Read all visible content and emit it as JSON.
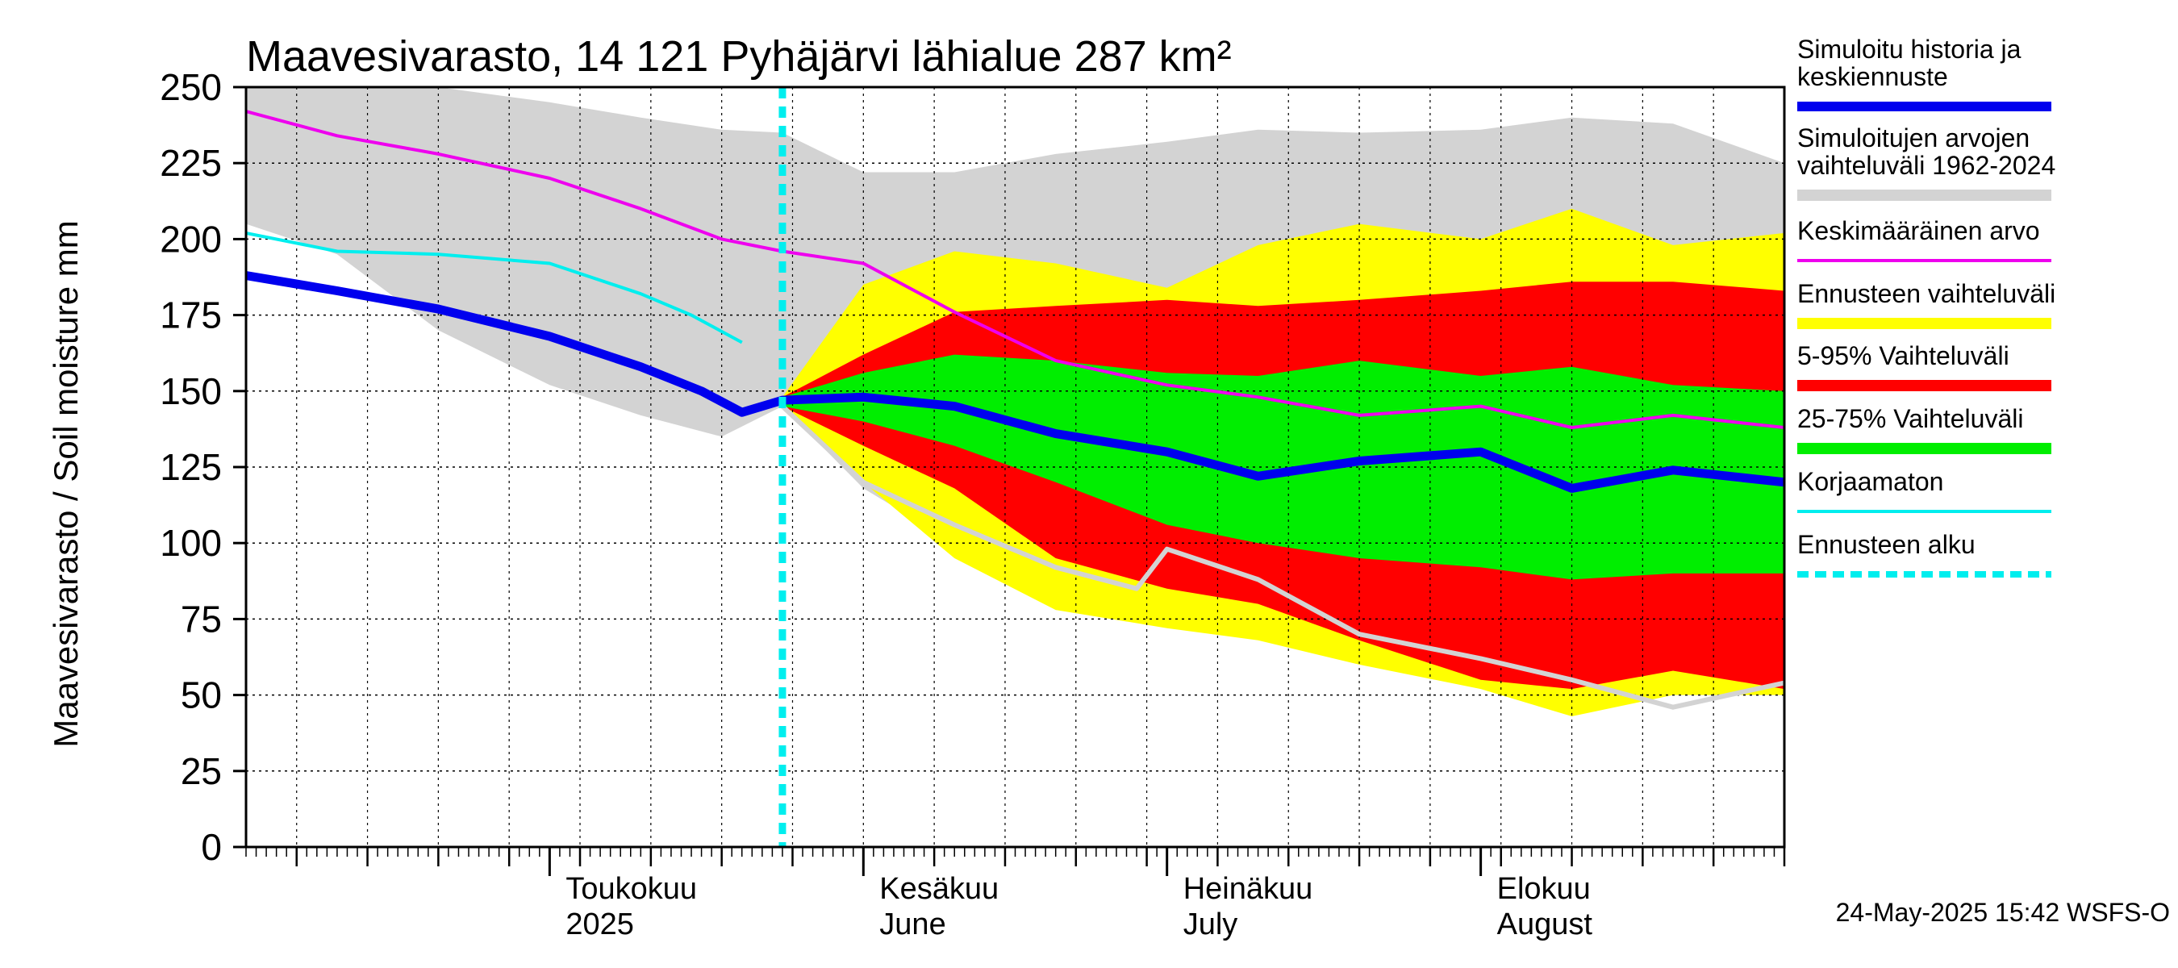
{
  "chart_data": {
    "type": "area",
    "title": "Maavesivarasto, 14 121 Pyhäjärvi lähialue 287 km²",
    "ylabel": "Maavesivarasto / Soil moisture   mm",
    "ylim": [
      0,
      250
    ],
    "yticks": [
      0,
      25,
      50,
      75,
      100,
      125,
      150,
      175,
      200,
      225,
      250
    ],
    "xlim": [
      "2025-04-01",
      "2025-08-31"
    ],
    "grid": true,
    "month_labels": [
      {
        "date": "2025-05-01",
        "line1": "Toukokuu",
        "line2": "2025"
      },
      {
        "date": "2025-06-01",
        "line1": "Kesäkuu",
        "line2": "June"
      },
      {
        "date": "2025-07-01",
        "line1": "Heinäkuu",
        "line2": "July"
      },
      {
        "date": "2025-08-01",
        "line1": "Elokuu",
        "line2": "August"
      }
    ],
    "forecast_start": "2025-05-24",
    "timestamp": "24-May-2025 15:42 WSFS-O",
    "legend": [
      {
        "label": "Simuloitu historia ja keskiennuste",
        "color": "#0000ee",
        "style": "thick"
      },
      {
        "label": "Simuloitujen arvojen vaihteluväli 1962-2024",
        "color": "#d3d3d3",
        "style": "band"
      },
      {
        "label": "Keskimääräinen arvo",
        "color": "#ee00ee",
        "style": "line"
      },
      {
        "label": "Ennusteen vaihteluväli",
        "color": "#ffff00",
        "style": "band"
      },
      {
        "label": "5-95% Vaihteluväli",
        "color": "#ff0000",
        "style": "band"
      },
      {
        "label": "25-75% Vaihteluväli",
        "color": "#00ee00",
        "style": "band"
      },
      {
        "label": "Korjaamaton",
        "color": "#00eeee",
        "style": "line"
      },
      {
        "label": "Ennusteen alku",
        "color": "#00eeee",
        "style": "dashed"
      }
    ],
    "series": [
      {
        "name": "Simuloitujen arvojen vaihteluväli 1962-2024",
        "kind": "band",
        "color": "#d3d3d3",
        "x": [
          "2025-04-01",
          "2025-04-10",
          "2025-04-20",
          "2025-05-01",
          "2025-05-10",
          "2025-05-18",
          "2025-05-24",
          "2025-06-01",
          "2025-06-10",
          "2025-06-20",
          "2025-07-01",
          "2025-07-10",
          "2025-07-20",
          "2025-08-01",
          "2025-08-10",
          "2025-08-20",
          "2025-08-31"
        ],
        "low": [
          205,
          195,
          170,
          152,
          142,
          135,
          145,
          118,
          100,
          78,
          78,
          80,
          95,
          80,
          90,
          100,
          102
        ],
        "high": [
          250,
          250,
          250,
          245,
          240,
          236,
          235,
          222,
          222,
          228,
          232,
          236,
          235,
          236,
          240,
          238,
          225
        ]
      },
      {
        "name": "Ennusteen vaihteluväli",
        "kind": "band",
        "color": "#ffff00",
        "x": [
          "2025-05-24",
          "2025-06-01",
          "2025-06-10",
          "2025-06-20",
          "2025-07-01",
          "2025-07-10",
          "2025-07-20",
          "2025-08-01",
          "2025-08-10",
          "2025-08-20",
          "2025-08-31"
        ],
        "low": [
          145,
          120,
          95,
          78,
          72,
          68,
          60,
          52,
          43,
          50,
          50
        ],
        "high": [
          148,
          185,
          196,
          192,
          184,
          198,
          205,
          200,
          210,
          198,
          202
        ]
      },
      {
        "name": "5-95% Vaihteluväli",
        "kind": "band",
        "color": "#ff0000",
        "x": [
          "2025-05-24",
          "2025-06-01",
          "2025-06-10",
          "2025-06-20",
          "2025-07-01",
          "2025-07-10",
          "2025-07-20",
          "2025-08-01",
          "2025-08-10",
          "2025-08-20",
          "2025-08-31"
        ],
        "low": [
          145,
          132,
          118,
          95,
          85,
          80,
          68,
          55,
          52,
          58,
          52
        ],
        "high": [
          148,
          162,
          176,
          178,
          180,
          178,
          180,
          183,
          186,
          186,
          183
        ]
      },
      {
        "name": "25-75% Vaihteluväli",
        "kind": "band",
        "color": "#00ee00",
        "x": [
          "2025-05-24",
          "2025-06-01",
          "2025-06-10",
          "2025-06-20",
          "2025-07-01",
          "2025-07-10",
          "2025-07-20",
          "2025-08-01",
          "2025-08-10",
          "2025-08-20",
          "2025-08-31"
        ],
        "low": [
          145,
          140,
          132,
          120,
          106,
          100,
          95,
          92,
          88,
          90,
          90
        ],
        "high": [
          148,
          156,
          162,
          160,
          156,
          155,
          160,
          155,
          158,
          152,
          150
        ]
      },
      {
        "name": "Keskimääräinen arvo",
        "kind": "line",
        "color": "#ee00ee",
        "x": [
          "2025-04-01",
          "2025-04-10",
          "2025-04-20",
          "2025-05-01",
          "2025-05-10",
          "2025-05-18",
          "2025-05-24",
          "2025-06-01",
          "2025-06-10",
          "2025-06-20",
          "2025-07-01",
          "2025-07-10",
          "2025-07-20",
          "2025-08-01",
          "2025-08-10",
          "2025-08-20",
          "2025-08-31"
        ],
        "y": [
          242,
          234,
          228,
          220,
          210,
          200,
          196,
          192,
          176,
          160,
          152,
          148,
          142,
          145,
          138,
          142,
          138
        ]
      },
      {
        "name": "Simuloitu historia ja keskiennuste",
        "kind": "line",
        "color": "#0000ee",
        "x": [
          "2025-04-01",
          "2025-04-10",
          "2025-04-20",
          "2025-05-01",
          "2025-05-10",
          "2025-05-16",
          "2025-05-20",
          "2025-05-24",
          "2025-06-01",
          "2025-06-10",
          "2025-06-20",
          "2025-07-01",
          "2025-07-10",
          "2025-07-20",
          "2025-08-01",
          "2025-08-10",
          "2025-08-20",
          "2025-08-31"
        ],
        "y": [
          188,
          183,
          177,
          168,
          158,
          150,
          143,
          147,
          148,
          145,
          136,
          130,
          122,
          127,
          130,
          118,
          124,
          120
        ]
      },
      {
        "name": "Korjaamaton",
        "kind": "line",
        "color": "#00eeee",
        "x": [
          "2025-04-01",
          "2025-04-10",
          "2025-04-20",
          "2025-05-01",
          "2025-05-10",
          "2025-05-15",
          "2025-05-20"
        ],
        "y": [
          202,
          196,
          195,
          192,
          182,
          175,
          166
        ]
      },
      {
        "name": "",
        "kind": "line",
        "color": "#d3d3d3",
        "x": [
          "2025-05-24",
          "2025-06-01",
          "2025-06-10",
          "2025-06-20",
          "2025-06-28",
          "2025-07-01",
          "2025-07-10",
          "2025-07-20",
          "2025-08-01",
          "2025-08-10",
          "2025-08-20",
          "2025-08-31"
        ],
        "y": [
          145,
          120,
          106,
          92,
          85,
          98,
          88,
          70,
          62,
          55,
          46,
          54
        ]
      }
    ]
  }
}
